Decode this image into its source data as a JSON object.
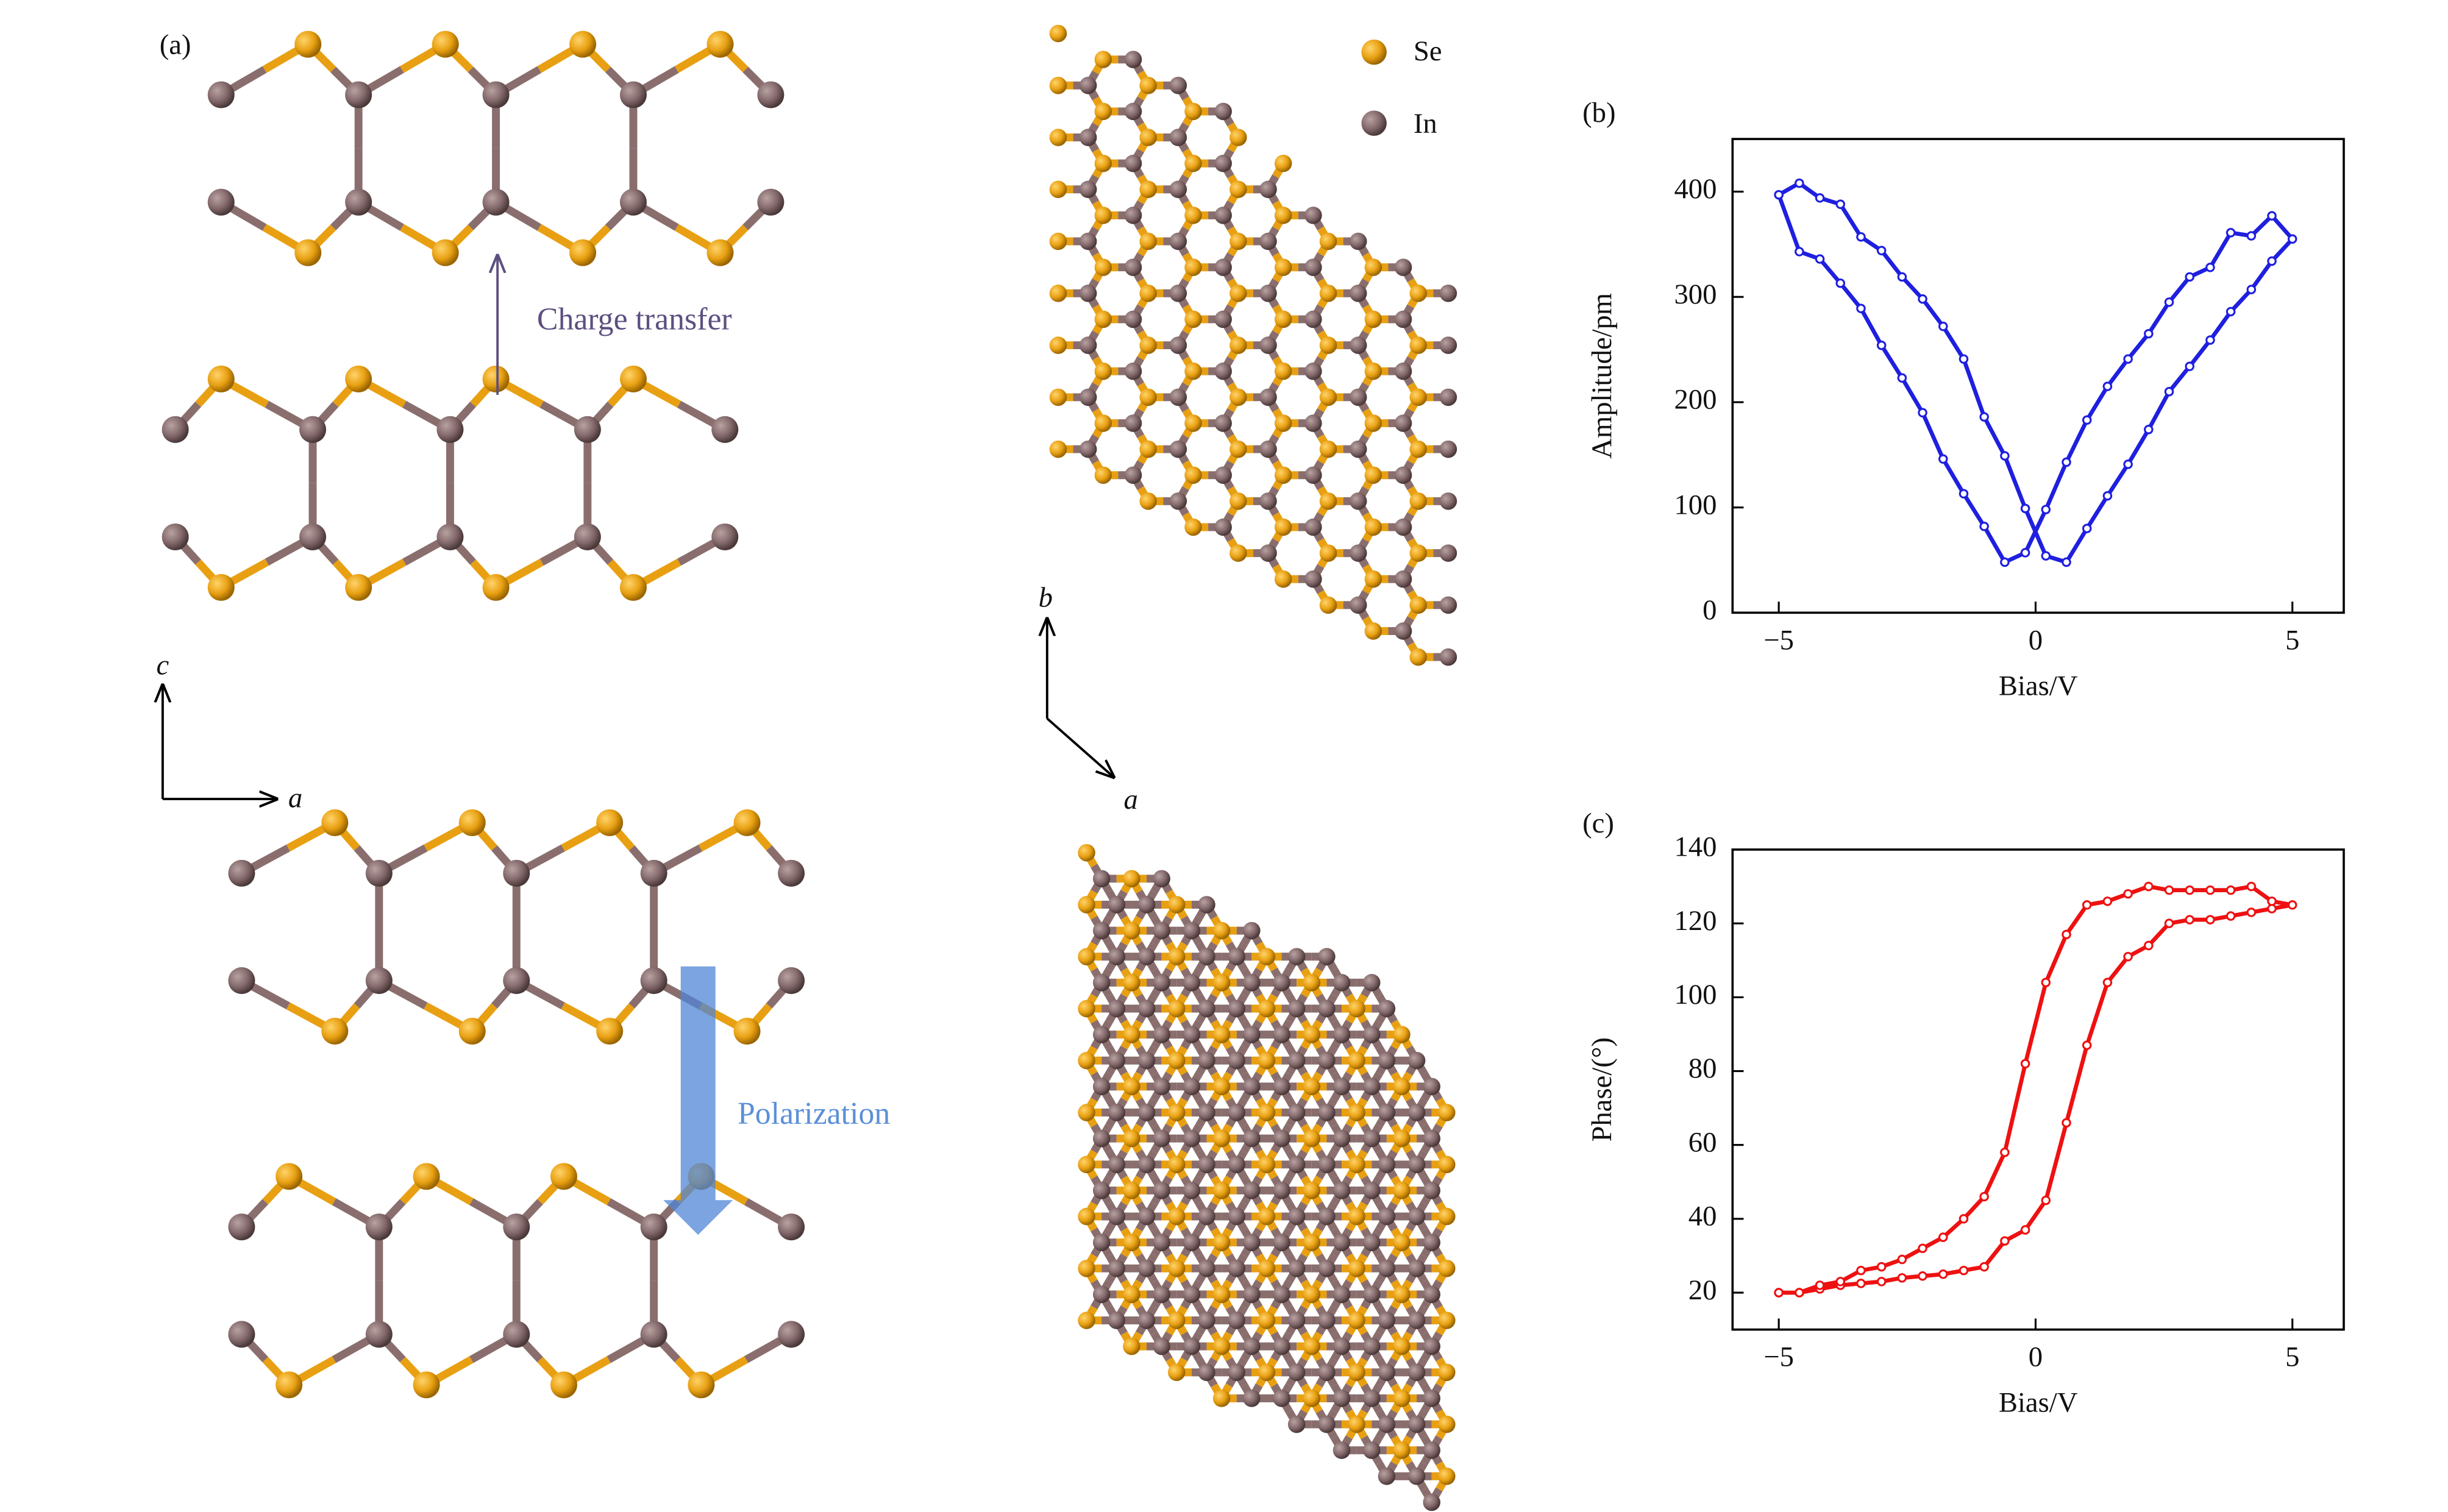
{
  "panel_a": {
    "label": "(a)",
    "legend": [
      "Se",
      "In"
    ],
    "annotations": [
      "Charge transfer",
      "Polarization"
    ],
    "axes": [
      "c",
      "a",
      "b",
      "a"
    ]
  },
  "chart_data": [
    {
      "type": "line",
      "panel": "(b)",
      "xlabel": "Bias/V",
      "ylabel": "Amplitude/pm",
      "color": "#1f1fe0",
      "x": [
        -5,
        -4.6,
        -4.2,
        -3.8,
        -3.4,
        -3.0,
        -2.6,
        -2.2,
        -1.8,
        -1.4,
        -1.0,
        -0.6,
        -0.2,
        0.2,
        0.6,
        1.0,
        1.4,
        1.8,
        2.2,
        2.6,
        3.0,
        3.4,
        3.8,
        4.2,
        4.6,
        5,
        4.6,
        4.2,
        3.8,
        3.4,
        3.0,
        2.6,
        2.2,
        1.8,
        1.4,
        1.0,
        0.6,
        0.2,
        -0.2,
        -0.6,
        -1.0,
        -1.4,
        -1.8,
        -2.2,
        -2.6,
        -3.0,
        -3.4,
        -3.8,
        -4.2,
        -4.6,
        -5
      ],
      "values": [
        397,
        408,
        394,
        388,
        357,
        344,
        319,
        298,
        272,
        241,
        186,
        149,
        99,
        54,
        48,
        80,
        111,
        141,
        174,
        210,
        234,
        259,
        286,
        307,
        334,
        355,
        377,
        358,
        361,
        328,
        319,
        295,
        265,
        241,
        215,
        183,
        143,
        98,
        57,
        48,
        82,
        113,
        146,
        190,
        223,
        254,
        289,
        313,
        336,
        343,
        397
      ],
      "xlim": [
        -5.9,
        6
      ],
      "xticks": [
        {
          "value": -5,
          "label": "−5"
        },
        0,
        5
      ],
      "ylim": [
        0,
        450
      ],
      "yticks": [
        0,
        100,
        200,
        300,
        400
      ]
    },
    {
      "type": "line",
      "panel": "(c)",
      "xlabel": "Bias/V",
      "ylabel": "Phase/(°)",
      "color": "#ee1111",
      "x": [
        -5,
        -4.6,
        -4.2,
        -3.8,
        -3.4,
        -3.0,
        -2.6,
        -2.2,
        -1.8,
        -1.4,
        -1.0,
        -0.6,
        -0.2,
        0.2,
        0.6,
        1.0,
        1.4,
        1.8,
        2.2,
        2.6,
        3.0,
        3.4,
        3.8,
        4.2,
        4.6,
        5,
        4.6,
        4.2,
        3.8,
        3.4,
        3.0,
        2.6,
        2.2,
        1.8,
        1.4,
        1.0,
        0.6,
        0.2,
        -0.2,
        -0.6,
        -1.0,
        -1.4,
        -1.8,
        -2.2,
        -2.6,
        -3.0,
        -3.4,
        -3.8,
        -4.2,
        -4.6,
        -5
      ],
      "values": [
        20,
        20,
        21,
        22,
        22.5,
        23,
        24,
        24.5,
        25,
        26,
        27,
        34,
        37,
        45,
        66,
        87,
        104,
        111,
        114,
        120,
        121,
        121,
        122,
        123,
        124,
        125,
        126,
        130,
        129,
        129,
        129,
        129,
        130,
        128,
        126,
        125,
        117,
        104,
        82,
        58,
        46,
        40,
        35,
        32,
        29,
        27,
        26,
        23,
        22,
        20,
        20
      ],
      "xlim": [
        -5.9,
        6
      ],
      "xticks": [
        {
          "value": -5,
          "label": "−5"
        },
        0,
        5
      ],
      "ylim": [
        10,
        140
      ],
      "yticks": [
        20,
        40,
        60,
        80,
        100,
        120,
        140
      ]
    }
  ]
}
